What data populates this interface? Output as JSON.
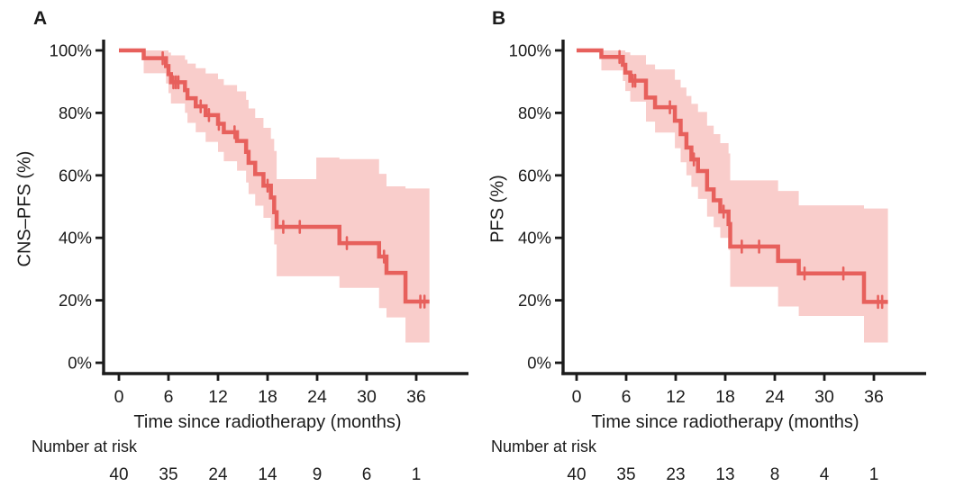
{
  "style": {
    "curve_color": "#e7605c",
    "band_color": "#f9cdcb",
    "axis_color": "#1b1b1b",
    "text_color": "#1b1b1b"
  },
  "chart_data": [
    {
      "type": "line",
      "variant": "kaplan-meier-step",
      "panel_label": "A",
      "ylabel": "CNS–PFS (%)",
      "xlabel": "Time since radiotherapy (months)",
      "xlim": [
        0,
        39
      ],
      "ylim": [
        0,
        100
      ],
      "x_ticks": [
        0,
        6,
        12,
        18,
        24,
        30,
        36
      ],
      "y_tick_values": [
        100,
        80,
        60,
        40,
        20,
        0
      ],
      "y_tick_labels": [
        "100%",
        "80%",
        "60%",
        "40%",
        "20%",
        "0%"
      ],
      "grid": false,
      "legend": "none",
      "curve_end": 37.6,
      "steps": [
        [
          0,
          100
        ],
        [
          3.0,
          97.5
        ],
        [
          5.7,
          95.0
        ],
        [
          6.0,
          92.4
        ],
        [
          6.3,
          89.8
        ],
        [
          8.0,
          87.3
        ],
        [
          8.3,
          84.7
        ],
        [
          9.3,
          82.1
        ],
        [
          10.5,
          79.3
        ],
        [
          12.0,
          76.5
        ],
        [
          12.7,
          73.8
        ],
        [
          14.3,
          71.0
        ],
        [
          15.4,
          67.5
        ],
        [
          15.7,
          64.0
        ],
        [
          16.5,
          60.4
        ],
        [
          17.5,
          56.7
        ],
        [
          18.4,
          52.9
        ],
        [
          18.8,
          48.2
        ],
        [
          19.1,
          43.5
        ],
        [
          26.7,
          38.3
        ],
        [
          31.5,
          34.0
        ],
        [
          32.4,
          28.8
        ],
        [
          34.7,
          19.6
        ]
      ],
      "censors": [
        [
          5.3,
          97.5
        ],
        [
          6.6,
          89.8
        ],
        [
          6.9,
          89.8
        ],
        [
          7.2,
          89.8
        ],
        [
          9.9,
          82.1
        ],
        [
          10.9,
          79.3
        ],
        [
          12.1,
          76.5
        ],
        [
          14.0,
          73.8
        ],
        [
          18.0,
          56.7
        ],
        [
          19.9,
          43.5
        ],
        [
          21.9,
          43.5
        ],
        [
          27.6,
          38.3
        ],
        [
          32.1,
          34.0
        ],
        [
          36.5,
          19.6
        ],
        [
          37.0,
          19.6
        ]
      ],
      "band": [
        [
          3.0,
          92.7,
          100
        ],
        [
          5.7,
          89.4,
          100
        ],
        [
          6.0,
          86.3,
          99.3
        ],
        [
          6.3,
          83.0,
          98.4
        ],
        [
          8.0,
          80.0,
          97.0
        ],
        [
          8.3,
          76.8,
          95.8
        ],
        [
          9.3,
          73.8,
          94.3
        ],
        [
          10.5,
          70.7,
          92.6
        ],
        [
          12.0,
          67.5,
          90.8
        ],
        [
          12.7,
          64.5,
          88.9
        ],
        [
          14.3,
          61.5,
          86.9
        ],
        [
          15.4,
          57.7,
          84.2
        ],
        [
          15.7,
          54.0,
          81.4
        ],
        [
          16.5,
          50.3,
          78.4
        ],
        [
          17.5,
          46.4,
          75.2
        ],
        [
          18.4,
          42.5,
          71.7
        ],
        [
          18.8,
          37.9,
          67.8
        ],
        [
          19.1,
          27.7,
          58.8
        ],
        [
          23.9,
          27.7,
          65.7
        ],
        [
          26.7,
          24.0,
          65.2
        ],
        [
          31.5,
          17.5,
          60.5
        ],
        [
          32.4,
          14.5,
          56.5
        ],
        [
          34.7,
          6.5,
          55.8
        ]
      ],
      "risk_label": "Number at risk",
      "risk_times": [
        0,
        6,
        12,
        18,
        24,
        30,
        36
      ],
      "risk_counts": [
        40,
        35,
        24,
        14,
        9,
        6,
        1
      ]
    },
    {
      "type": "line",
      "variant": "kaplan-meier-step",
      "panel_label": "B",
      "ylabel": "PFS (%)",
      "xlabel": "Time since radiotherapy (months)",
      "xlim": [
        0,
        39
      ],
      "ylim": [
        0,
        100
      ],
      "x_ticks": [
        0,
        6,
        12,
        18,
        24,
        30,
        36
      ],
      "y_tick_values": [
        100,
        80,
        60,
        40,
        20,
        0
      ],
      "y_tick_labels": [
        "100%",
        "80%",
        "60%",
        "40%",
        "20%",
        "0%"
      ],
      "grid": false,
      "legend": "none",
      "curve_end": 37.7,
      "steps": [
        [
          0,
          100
        ],
        [
          3.0,
          97.9
        ],
        [
          5.6,
          95.4
        ],
        [
          5.9,
          92.9
        ],
        [
          6.5,
          90.3
        ],
        [
          8.4,
          84.9
        ],
        [
          9.5,
          81.8
        ],
        [
          11.9,
          77.5
        ],
        [
          12.6,
          73.2
        ],
        [
          13.3,
          68.9
        ],
        [
          13.9,
          65.1
        ],
        [
          14.7,
          61.4
        ],
        [
          15.8,
          55.5
        ],
        [
          16.6,
          52.0
        ],
        [
          17.4,
          48.4
        ],
        [
          18.4,
          44.4
        ],
        [
          18.6,
          37.2
        ],
        [
          24.4,
          32.6
        ],
        [
          26.9,
          28.6
        ],
        [
          34.8,
          19.5
        ]
      ],
      "censors": [
        [
          5.2,
          97.9
        ],
        [
          6.8,
          90.3
        ],
        [
          7.1,
          90.3
        ],
        [
          11.3,
          81.8
        ],
        [
          14.2,
          65.1
        ],
        [
          17.8,
          48.4
        ],
        [
          20.0,
          37.2
        ],
        [
          22.1,
          37.2
        ],
        [
          27.6,
          28.6
        ],
        [
          32.3,
          28.6
        ],
        [
          36.5,
          19.5
        ],
        [
          37.0,
          19.5
        ]
      ],
      "band": [
        [
          3.0,
          93.6,
          100
        ],
        [
          5.6,
          90.2,
          100
        ],
        [
          5.9,
          87.0,
          99.4
        ],
        [
          6.5,
          83.6,
          98.5
        ],
        [
          8.4,
          77.2,
          95.5
        ],
        [
          9.5,
          73.7,
          93.9
        ],
        [
          11.9,
          68.7,
          90.6
        ],
        [
          12.6,
          64.2,
          88.1
        ],
        [
          13.3,
          60.0,
          85.4
        ],
        [
          13.9,
          56.3,
          82.9
        ],
        [
          14.7,
          52.5,
          80.3
        ],
        [
          15.8,
          46.8,
          75.9
        ],
        [
          16.6,
          43.4,
          73.2
        ],
        [
          17.4,
          40.0,
          70.3
        ],
        [
          18.4,
          36.1,
          67.0
        ],
        [
          18.6,
          24.3,
          58.4
        ],
        [
          24.4,
          18.0,
          55.0
        ],
        [
          26.9,
          15.0,
          50.4
        ],
        [
          34.8,
          6.5,
          49.4
        ]
      ],
      "risk_label": "Number at risk",
      "risk_times": [
        0,
        6,
        12,
        18,
        24,
        30,
        36
      ],
      "risk_counts": [
        40,
        35,
        23,
        13,
        8,
        4,
        1
      ]
    }
  ]
}
